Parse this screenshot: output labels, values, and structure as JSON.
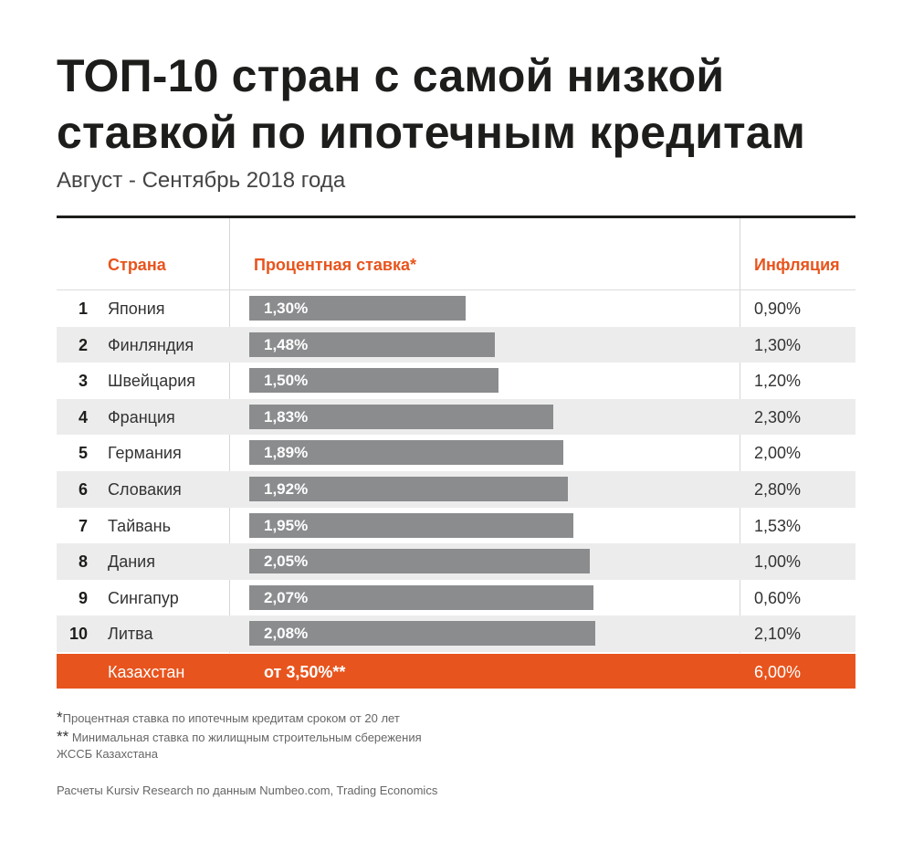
{
  "header": {
    "title_line1": "ТОП-10 стран с самой низкой",
    "title_line2": "ставкой по ипотечным кредитам",
    "subtitle": "Август - Сентябрь 2018 года"
  },
  "columns": {
    "country": "Страна",
    "rate": "Процентная ставка*",
    "inflation": "Инфляция"
  },
  "chart_data": {
    "type": "bar",
    "title": "ТОП-10 стран с самой низкой ставкой по ипотечным кредитам",
    "subtitle": "Август - Сентябрь 2018 года",
    "categories": [
      "Япония",
      "Финляндия",
      "Швейцария",
      "Франция",
      "Германия",
      "Словакия",
      "Тайвань",
      "Дания",
      "Сингапур",
      "Литва"
    ],
    "ranks": [
      "1",
      "2",
      "3",
      "4",
      "5",
      "6",
      "7",
      "8",
      "9",
      "10"
    ],
    "values": [
      1.3,
      1.48,
      1.5,
      1.83,
      1.89,
      1.92,
      1.95,
      2.05,
      2.07,
      2.08
    ],
    "value_labels": [
      "1,30%",
      "1,48%",
      "1,50%",
      "1,83%",
      "1,89%",
      "1,92%",
      "1,95%",
      "2,05%",
      "2,07%",
      "2,08%"
    ],
    "inflation": [
      "0,90%",
      "1,30%",
      "1,20%",
      "2,30%",
      "2,00%",
      "2,80%",
      "1,53%",
      "1,00%",
      "0,60%",
      "2,10%"
    ],
    "orientation": "horizontal",
    "grid": false,
    "colors": {
      "bar": "#8a8c8e",
      "accent": "#e8541d",
      "stripe": "#ececec"
    }
  },
  "highlight": {
    "country": "Казахстан",
    "rate": "от 3,50%**",
    "inflation": "6,00%"
  },
  "footnotes": {
    "note1_mark": "*",
    "note1_text": "Процентная ставка по ипотечным кредитам сроком от 20 лет",
    "note2_mark": "**",
    "note2_line1": " Минимальная ставка по жилищным строительным сбережения",
    "note2_line2": "ЖССБ Казахстана",
    "source": "Расчеты Kursiv Research по данным Numbeo.com, Trading Economics"
  }
}
